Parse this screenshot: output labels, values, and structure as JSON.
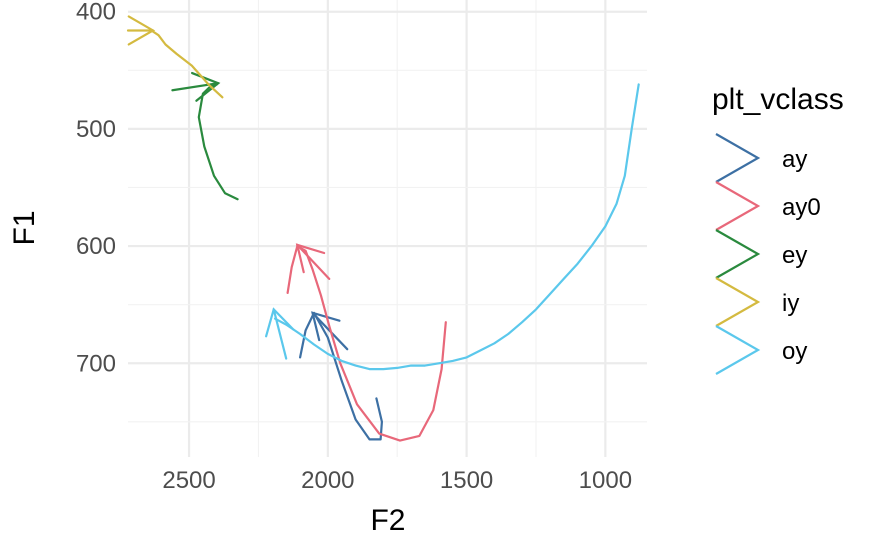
{
  "chart_data": {
    "type": "line",
    "xlabel": "F2",
    "ylabel": "F1",
    "x_reversed": true,
    "y_reversed": true,
    "xlim": [
      2720,
      850
    ],
    "ylim": [
      390,
      780
    ],
    "x_ticks": [
      2500,
      2000,
      1500,
      1000
    ],
    "y_ticks": [
      400,
      500,
      600,
      700
    ],
    "grid": true,
    "legend": {
      "title": "plt_vclass",
      "position": "right",
      "entries": [
        "ay",
        "ay0",
        "ey",
        "iy",
        "oy"
      ]
    },
    "series": [
      {
        "name": "ay",
        "color": "#3D70A4",
        "points": [
          [
            1825,
            730
          ],
          [
            1805,
            750
          ],
          [
            1810,
            765
          ],
          [
            1850,
            765
          ],
          [
            1900,
            748
          ],
          [
            1950,
            715
          ],
          [
            2000,
            678
          ],
          [
            2050,
            657
          ],
          [
            2080,
            672
          ],
          [
            2100,
            695
          ]
        ],
        "arrow_from": [
          1930,
          688
        ],
        "arrow_to": [
          2055,
          657
        ]
      },
      {
        "name": "ay0",
        "color": "#E8687A",
        "points": [
          [
            1575,
            665
          ],
          [
            1590,
            705
          ],
          [
            1620,
            740
          ],
          [
            1670,
            762
          ],
          [
            1740,
            766
          ],
          [
            1815,
            760
          ],
          [
            1895,
            735
          ],
          [
            1955,
            700
          ],
          [
            1995,
            668
          ],
          [
            2025,
            642
          ],
          [
            2055,
            620
          ],
          [
            2080,
            604
          ],
          [
            2110,
            600
          ],
          [
            2130,
            618
          ],
          [
            2145,
            640
          ]
        ],
        "arrow_from": [
          1995,
          628
        ],
        "arrow_to": [
          2110,
          599
        ]
      },
      {
        "name": "ey",
        "color": "#2A8A3E",
        "points": [
          [
            2325,
            560
          ],
          [
            2370,
            555
          ],
          [
            2410,
            540
          ],
          [
            2445,
            515
          ],
          [
            2465,
            490
          ],
          [
            2450,
            470
          ],
          [
            2420,
            463
          ],
          [
            2400,
            462
          ]
        ],
        "arrow_from": [
          2560,
          467
        ],
        "arrow_to": [
          2395,
          461
        ]
      },
      {
        "name": "iy",
        "color": "#D4BA40",
        "points": [
          [
            2380,
            473
          ],
          [
            2430,
            462
          ],
          [
            2490,
            446
          ],
          [
            2545,
            436
          ],
          [
            2585,
            428
          ],
          [
            2610,
            420
          ],
          [
            2630,
            417
          ]
        ],
        "arrow_from": [
          2720,
          416
        ],
        "arrow_to": [
          2630,
          416
        ]
      },
      {
        "name": "oy",
        "color": "#5BC8EC",
        "points": [
          [
            880,
            462
          ],
          [
            905,
            500
          ],
          [
            930,
            540
          ],
          [
            960,
            564
          ],
          [
            1000,
            583
          ],
          [
            1050,
            600
          ],
          [
            1100,
            615
          ],
          [
            1150,
            628
          ],
          [
            1200,
            641
          ],
          [
            1250,
            654
          ],
          [
            1300,
            665
          ],
          [
            1350,
            675
          ],
          [
            1400,
            683
          ],
          [
            1450,
            689
          ],
          [
            1500,
            695
          ],
          [
            1550,
            698
          ],
          [
            1600,
            700
          ],
          [
            1650,
            702
          ],
          [
            1700,
            702
          ],
          [
            1750,
            704
          ],
          [
            1800,
            705
          ],
          [
            1850,
            705
          ],
          [
            1900,
            702
          ],
          [
            1950,
            698
          ],
          [
            2000,
            692
          ],
          [
            2050,
            684
          ],
          [
            2100,
            675
          ],
          [
            2150,
            667
          ],
          [
            2190,
            662
          ]
        ],
        "arrow_from": [
          2150,
          696
        ],
        "arrow_to": [
          2195,
          654
        ]
      }
    ]
  }
}
